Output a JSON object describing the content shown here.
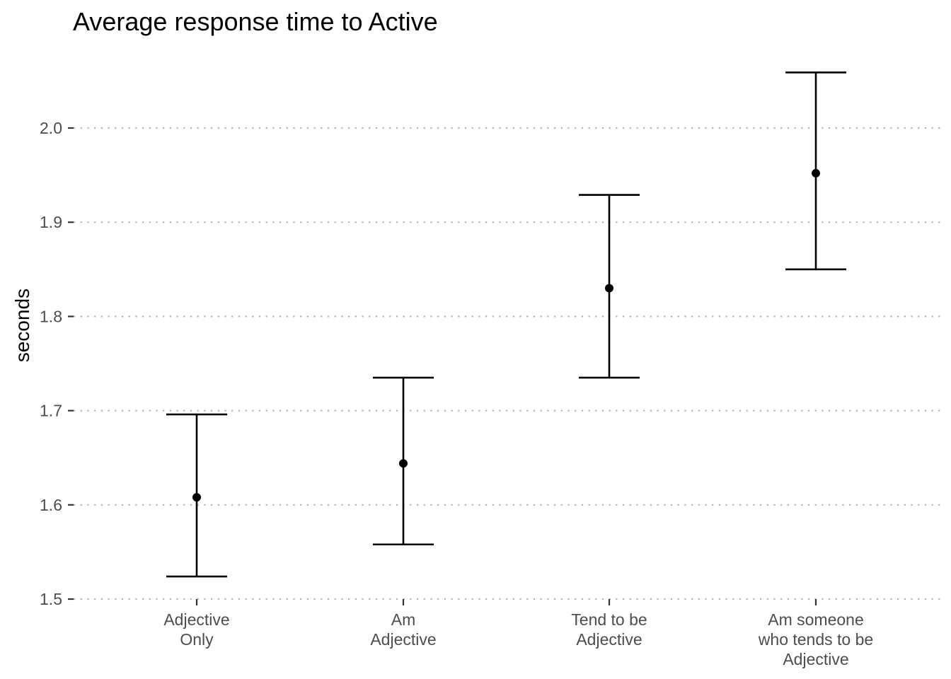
{
  "chart_data": {
    "type": "errorbar",
    "title": "Average response time to Active",
    "xlabel": "",
    "ylabel": "seconds",
    "categories": [
      [
        "Adjective",
        "Only"
      ],
      [
        "Am",
        "Adjective"
      ],
      [
        "Tend to be",
        "Adjective"
      ],
      [
        "Am someone",
        "who tends to be",
        "Adjective"
      ]
    ],
    "points": [
      {
        "mean": 1.608,
        "lower": 1.524,
        "upper": 1.696
      },
      {
        "mean": 1.644,
        "lower": 1.558,
        "upper": 1.735
      },
      {
        "mean": 1.83,
        "lower": 1.735,
        "upper": 1.929
      },
      {
        "mean": 1.952,
        "lower": 1.85,
        "upper": 2.059
      }
    ],
    "yticks": [
      "1.5",
      "1.6",
      "1.7",
      "1.8",
      "1.9",
      "2.0"
    ],
    "ylim": [
      1.5,
      2.06
    ],
    "grid": "horizontal dotted",
    "colors": {
      "points": "#000000",
      "grid": "#b3b3b3",
      "tick_labels": "#4d4d4d"
    }
  }
}
